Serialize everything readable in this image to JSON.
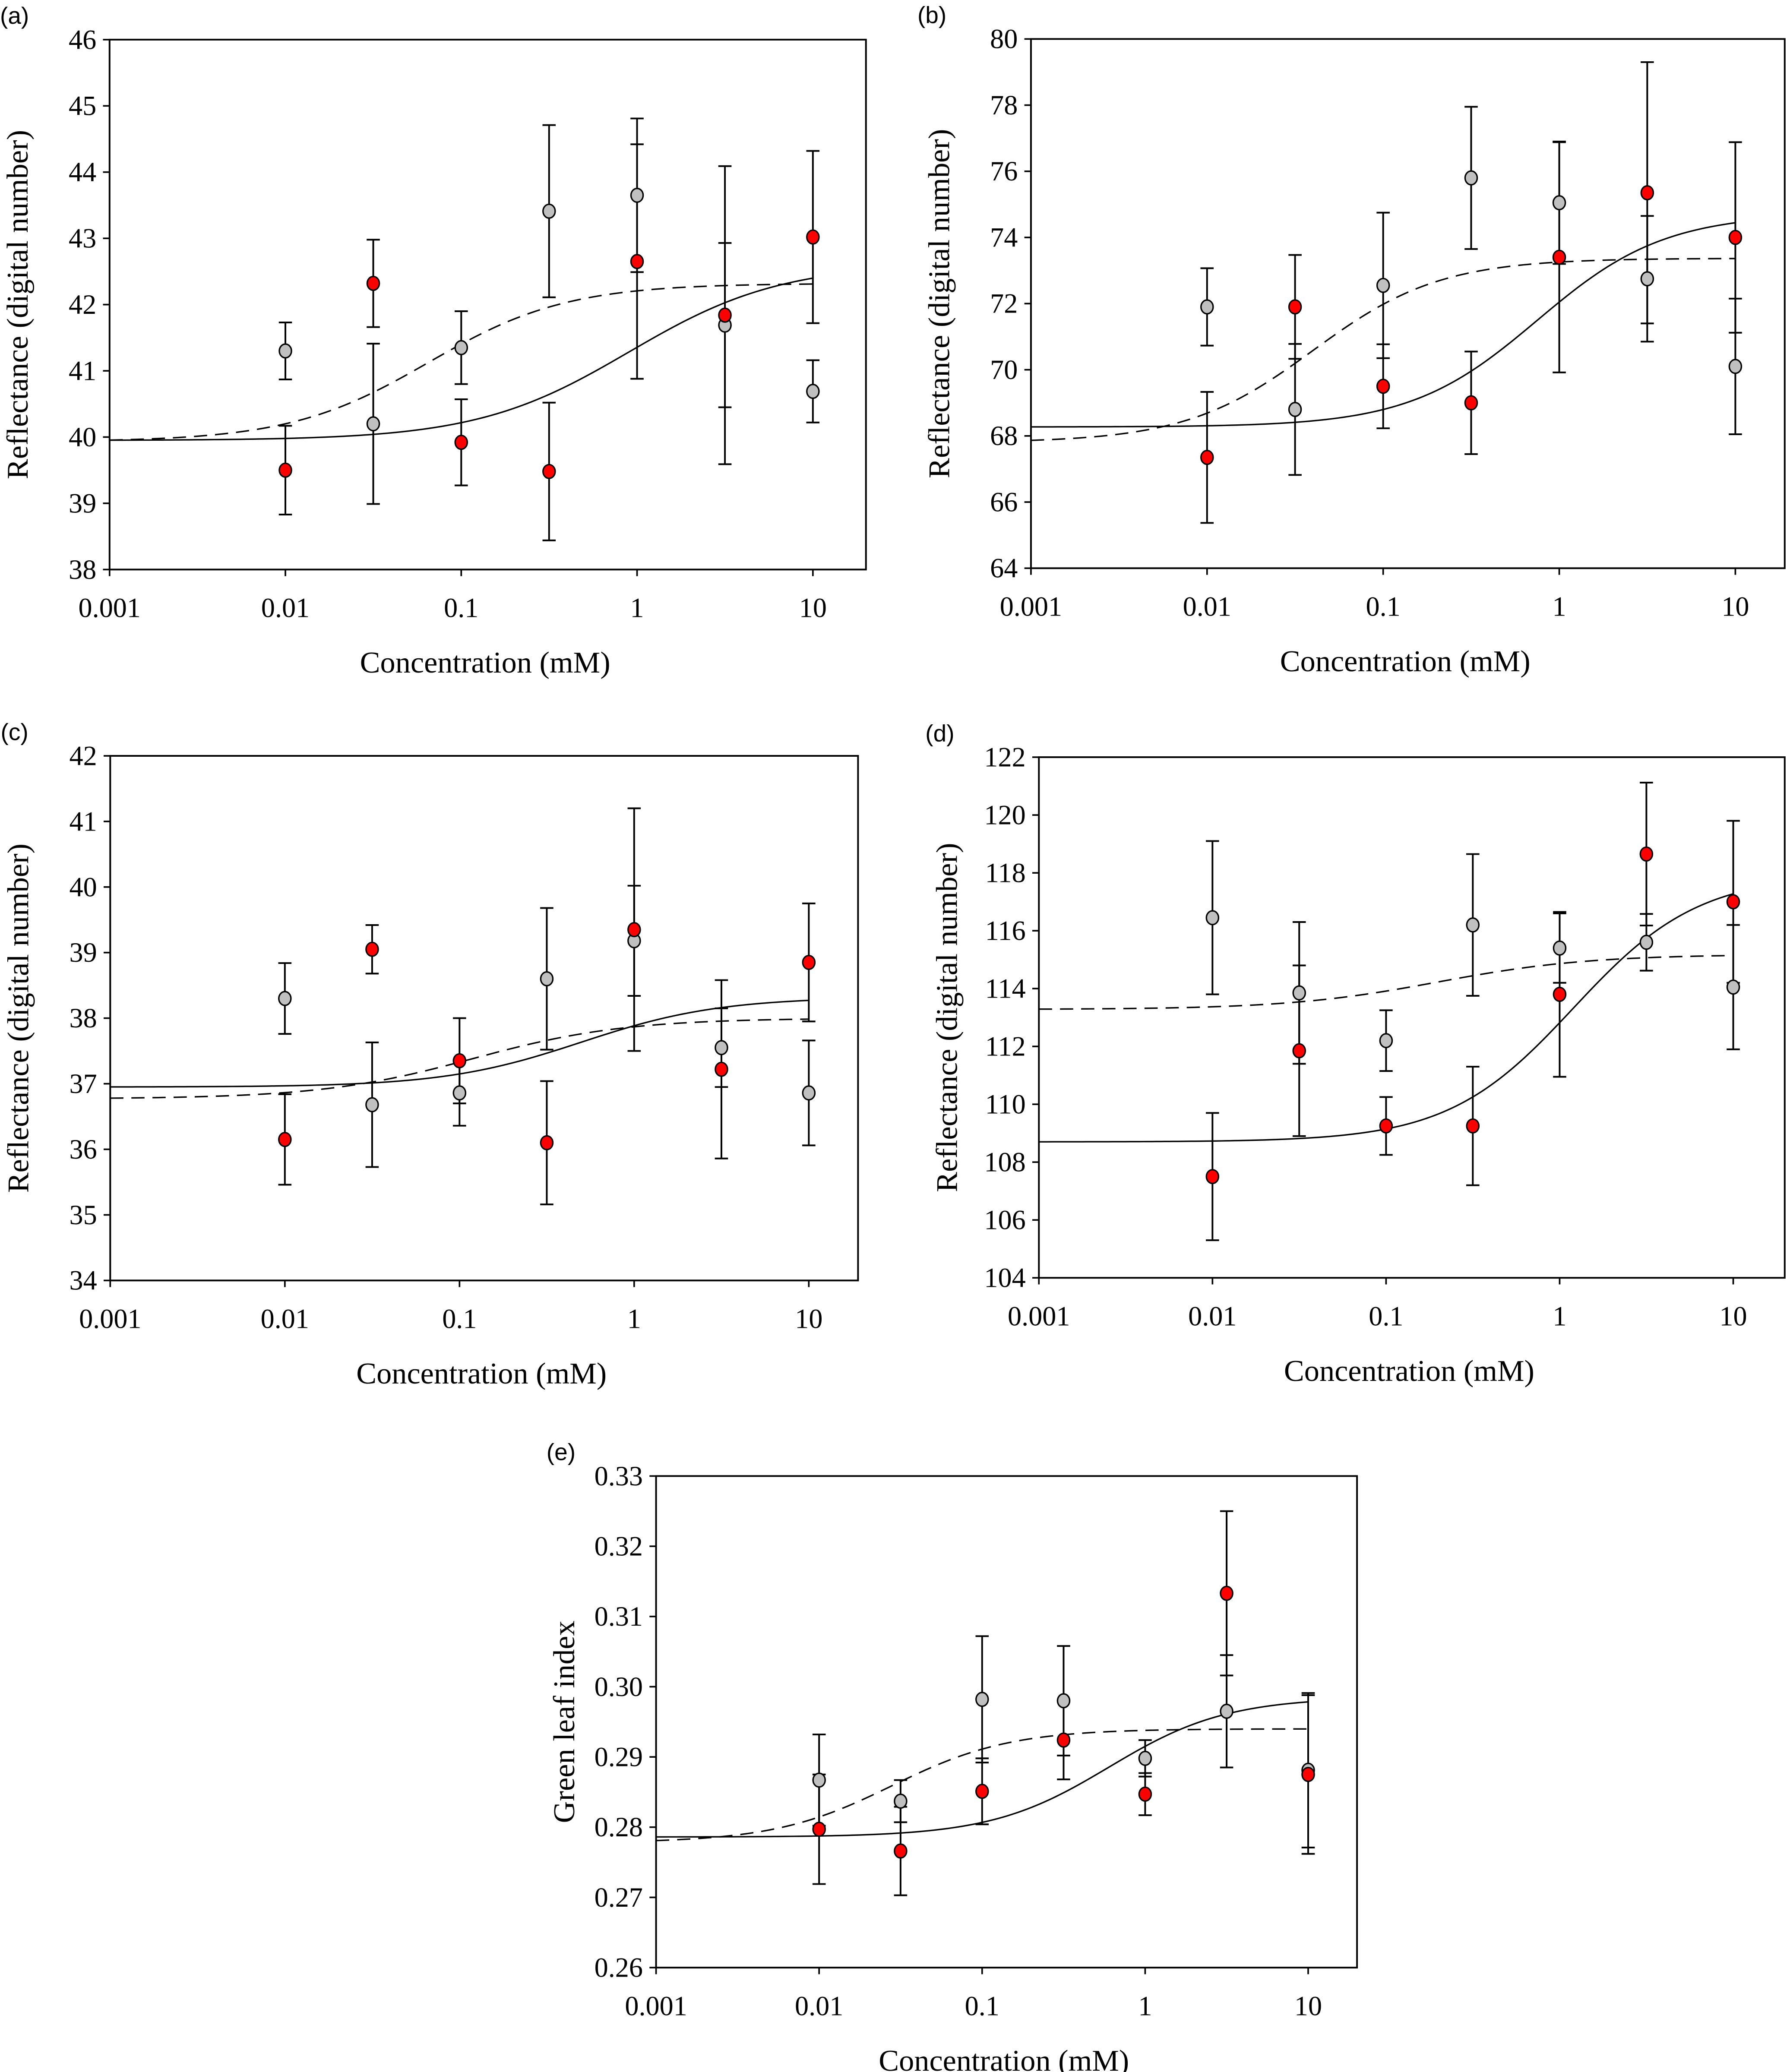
{
  "figure": {
    "marker_colors": {
      "series_gray": "#c0c0c0",
      "series_red": "#ff0000",
      "outline": "#000000"
    }
  },
  "chart_data": [
    {
      "id": "a",
      "type": "scatter",
      "panel_label": "(a)",
      "xlabel": "Concentration (mM)",
      "ylabel": "Reflectance (digital number)",
      "xscale": "log",
      "xlim": [
        0.001,
        10
      ],
      "xticks": [
        0.001,
        0.01,
        0.1,
        1,
        10
      ],
      "xtick_labels": [
        "0.001",
        "0.01",
        "0.1",
        "1",
        "10"
      ],
      "ylim": [
        38,
        46
      ],
      "yticks": [
        38,
        39,
        40,
        41,
        42,
        43,
        44,
        45,
        46
      ],
      "ytick_labels": [
        "38",
        "39",
        "40",
        "41",
        "42",
        "43",
        "44",
        "45",
        "46"
      ],
      "x": [
        0.01,
        0.0316,
        0.1,
        0.316,
        1,
        3.16,
        10
      ],
      "series": [
        {
          "name": "gray",
          "color": "#c0c0c0",
          "values": [
            41.3,
            40.2,
            41.35,
            43.41,
            43.65,
            41.69,
            40.69
          ],
          "errors": [
            0.43,
            1.21,
            0.55,
            1.3,
            1.16,
            1.24,
            0.47
          ]
        },
        {
          "name": "red",
          "color": "#ff0000",
          "values": [
            39.5,
            42.32,
            39.92,
            39.48,
            42.65,
            41.84,
            43.02
          ],
          "errors": [
            0.67,
            0.66,
            0.65,
            1.04,
            1.77,
            2.25,
            1.3
          ]
        }
      ],
      "fits": [
        {
          "style": "solid",
          "bottom": 39.95,
          "top": 42.62,
          "ec50": 0.9,
          "hill": 1.0
        },
        {
          "style": "dashed",
          "bottom": 39.93,
          "top": 42.32,
          "ec50": 0.065,
          "hill": 1.1
        }
      ],
      "grid": false,
      "legend": "none"
    },
    {
      "id": "b",
      "type": "scatter",
      "panel_label": "(b)",
      "xlabel": "Concentration (mM)",
      "ylabel": "Reflectance (digital number)",
      "xscale": "log",
      "xlim": [
        0.001,
        10
      ],
      "xticks": [
        0.001,
        0.01,
        0.1,
        1,
        10
      ],
      "xtick_labels": [
        "0.001",
        "0.01",
        "0.1",
        "1",
        "10"
      ],
      "ylim": [
        64,
        80
      ],
      "yticks": [
        64,
        66,
        68,
        70,
        72,
        74,
        76,
        78,
        80
      ],
      "ytick_labels": [
        "64",
        "66",
        "68",
        "70",
        "72",
        "74",
        "76",
        "78",
        "80"
      ],
      "x": [
        0.01,
        0.0316,
        0.1,
        0.316,
        1,
        3.16,
        10
      ],
      "series": [
        {
          "name": "gray",
          "color": "#c0c0c0",
          "values": [
            71.9,
            68.8,
            72.55,
            75.8,
            75.05,
            72.75,
            70.1
          ],
          "errors": [
            1.17,
            1.98,
            2.2,
            2.15,
            1.85,
            1.9,
            2.05
          ]
        },
        {
          "name": "red",
          "color": "#ff0000",
          "values": [
            67.35,
            71.9,
            69.5,
            69.0,
            73.4,
            75.35,
            74.0
          ],
          "errors": [
            1.98,
            1.57,
            1.27,
            1.55,
            3.48,
            3.95,
            2.88
          ]
        }
      ],
      "fits": [
        {
          "style": "solid",
          "bottom": 68.27,
          "top": 74.72,
          "ec50": 0.75,
          "hill": 1.2
        },
        {
          "style": "dashed",
          "bottom": 67.8,
          "top": 73.37,
          "ec50": 0.04,
          "hill": 1.2
        }
      ],
      "grid": false,
      "legend": "none"
    },
    {
      "id": "c",
      "type": "scatter",
      "panel_label": "(c)",
      "xlabel": "Concentration (mM)",
      "ylabel": "Reflectance (digital number)",
      "xscale": "log",
      "xlim": [
        0.001,
        10
      ],
      "xticks": [
        0.001,
        0.01,
        0.1,
        1,
        10
      ],
      "xtick_labels": [
        "0.001",
        "0.01",
        "0.1",
        "1",
        "10"
      ],
      "ylim": [
        34,
        42
      ],
      "yticks": [
        34,
        35,
        36,
        37,
        38,
        39,
        40,
        41,
        42
      ],
      "ytick_labels": [
        "34",
        "35",
        "36",
        "37",
        "38",
        "39",
        "40",
        "41",
        "42"
      ],
      "x": [
        0.01,
        0.0316,
        0.1,
        0.316,
        1,
        3.16,
        10
      ],
      "series": [
        {
          "name": "gray",
          "color": "#c0c0c0",
          "values": [
            38.3,
            36.68,
            36.86,
            38.6,
            39.18,
            37.55,
            36.86
          ],
          "errors": [
            0.54,
            0.95,
            0.5,
            1.08,
            0.84,
            0.6,
            0.8
          ]
        },
        {
          "name": "red",
          "color": "#ff0000",
          "values": [
            36.15,
            39.05,
            37.35,
            36.1,
            39.35,
            37.22,
            38.85
          ],
          "errors": [
            0.69,
            0.37,
            0.65,
            0.94,
            1.85,
            1.36,
            0.9
          ]
        }
      ],
      "fits": [
        {
          "style": "solid",
          "bottom": 36.95,
          "top": 38.32,
          "ec50": 0.5,
          "hill": 1.1
        },
        {
          "style": "dashed",
          "bottom": 36.77,
          "top": 38.0,
          "ec50": 0.12,
          "hill": 1.0
        }
      ],
      "grid": false,
      "legend": "none"
    },
    {
      "id": "d",
      "type": "scatter",
      "panel_label": "(d)",
      "xlabel": "Concentration (mM)",
      "ylabel": "Reflectance (digital number)",
      "xscale": "log",
      "xlim": [
        0.001,
        10
      ],
      "xticks": [
        0.001,
        0.01,
        0.1,
        1,
        10
      ],
      "xtick_labels": [
        "0.001",
        "0.01",
        "0.1",
        "1",
        "10"
      ],
      "ylim": [
        104,
        122
      ],
      "yticks": [
        104,
        106,
        108,
        110,
        112,
        114,
        116,
        118,
        120,
        122
      ],
      "ytick_labels": [
        "104",
        "106",
        "108",
        "110",
        "112",
        "114",
        "116",
        "118",
        "120",
        "122"
      ],
      "x": [
        0.01,
        0.0316,
        0.1,
        0.316,
        1,
        3.16,
        10
      ],
      "series": [
        {
          "name": "gray",
          "color": "#c0c0c0",
          "values": [
            116.45,
            113.85,
            112.2,
            116.2,
            115.4,
            115.6,
            114.05
          ],
          "errors": [
            2.65,
            2.45,
            1.05,
            2.45,
            1.2,
            0.98,
            2.15
          ]
        },
        {
          "name": "red",
          "color": "#ff0000",
          "values": [
            107.5,
            111.85,
            109.25,
            109.25,
            113.8,
            118.65,
            117.0
          ],
          "errors": [
            2.2,
            2.95,
            1.0,
            2.05,
            2.85,
            2.47,
            2.8
          ]
        }
      ],
      "fits": [
        {
          "style": "solid",
          "bottom": 108.7,
          "top": 117.95,
          "ec50": 1.2,
          "hill": 1.2
        },
        {
          "style": "dashed",
          "bottom": 113.28,
          "top": 115.18,
          "ec50": 0.2,
          "hill": 1.0
        }
      ],
      "grid": false,
      "legend": "none"
    },
    {
      "id": "e",
      "type": "scatter",
      "panel_label": "(e)",
      "xlabel": "Concentration (mM)",
      "ylabel": "Green leaf index",
      "xscale": "log",
      "xlim": [
        0.001,
        10
      ],
      "xticks": [
        0.001,
        0.01,
        0.1,
        1,
        10
      ],
      "xtick_labels": [
        "0.001",
        "0.01",
        "0.1",
        "1",
        "10"
      ],
      "ylim": [
        0.26,
        0.33
      ],
      "yticks": [
        0.26,
        0.27,
        0.28,
        0.29,
        0.3,
        0.31,
        0.32,
        0.33
      ],
      "ytick_labels": [
        "0.26",
        "0.27",
        "0.28",
        "0.29",
        "0.30",
        "0.31",
        "0.32",
        "0.33"
      ],
      "x": [
        0.01,
        0.0316,
        0.1,
        0.316,
        1,
        3.16,
        10
      ],
      "series": [
        {
          "name": "gray",
          "color": "#c0c0c0",
          "values": [
            0.2867,
            0.2837,
            0.2982,
            0.298,
            0.2898,
            0.2965,
            0.2881
          ],
          "errors": [
            0.0065,
            0.003,
            0.009,
            0.0078,
            0.0026,
            0.008,
            0.011
          ]
        },
        {
          "name": "red",
          "color": "#ff0000",
          "values": [
            0.2797,
            0.2766,
            0.2851,
            0.2924,
            0.2847,
            0.3133,
            0.2875
          ],
          "errors": [
            0.0078,
            0.0063,
            0.0047,
            0.0056,
            0.003,
            0.0117,
            0.0113
          ]
        }
      ],
      "fits": [
        {
          "style": "solid",
          "bottom": 0.2786,
          "top": 0.2985,
          "ec50": 0.6,
          "hill": 1.2
        },
        {
          "style": "dashed",
          "bottom": 0.2778,
          "top": 0.294,
          "ec50": 0.028,
          "hill": 1.2
        }
      ],
      "grid": false,
      "legend": "none"
    }
  ]
}
